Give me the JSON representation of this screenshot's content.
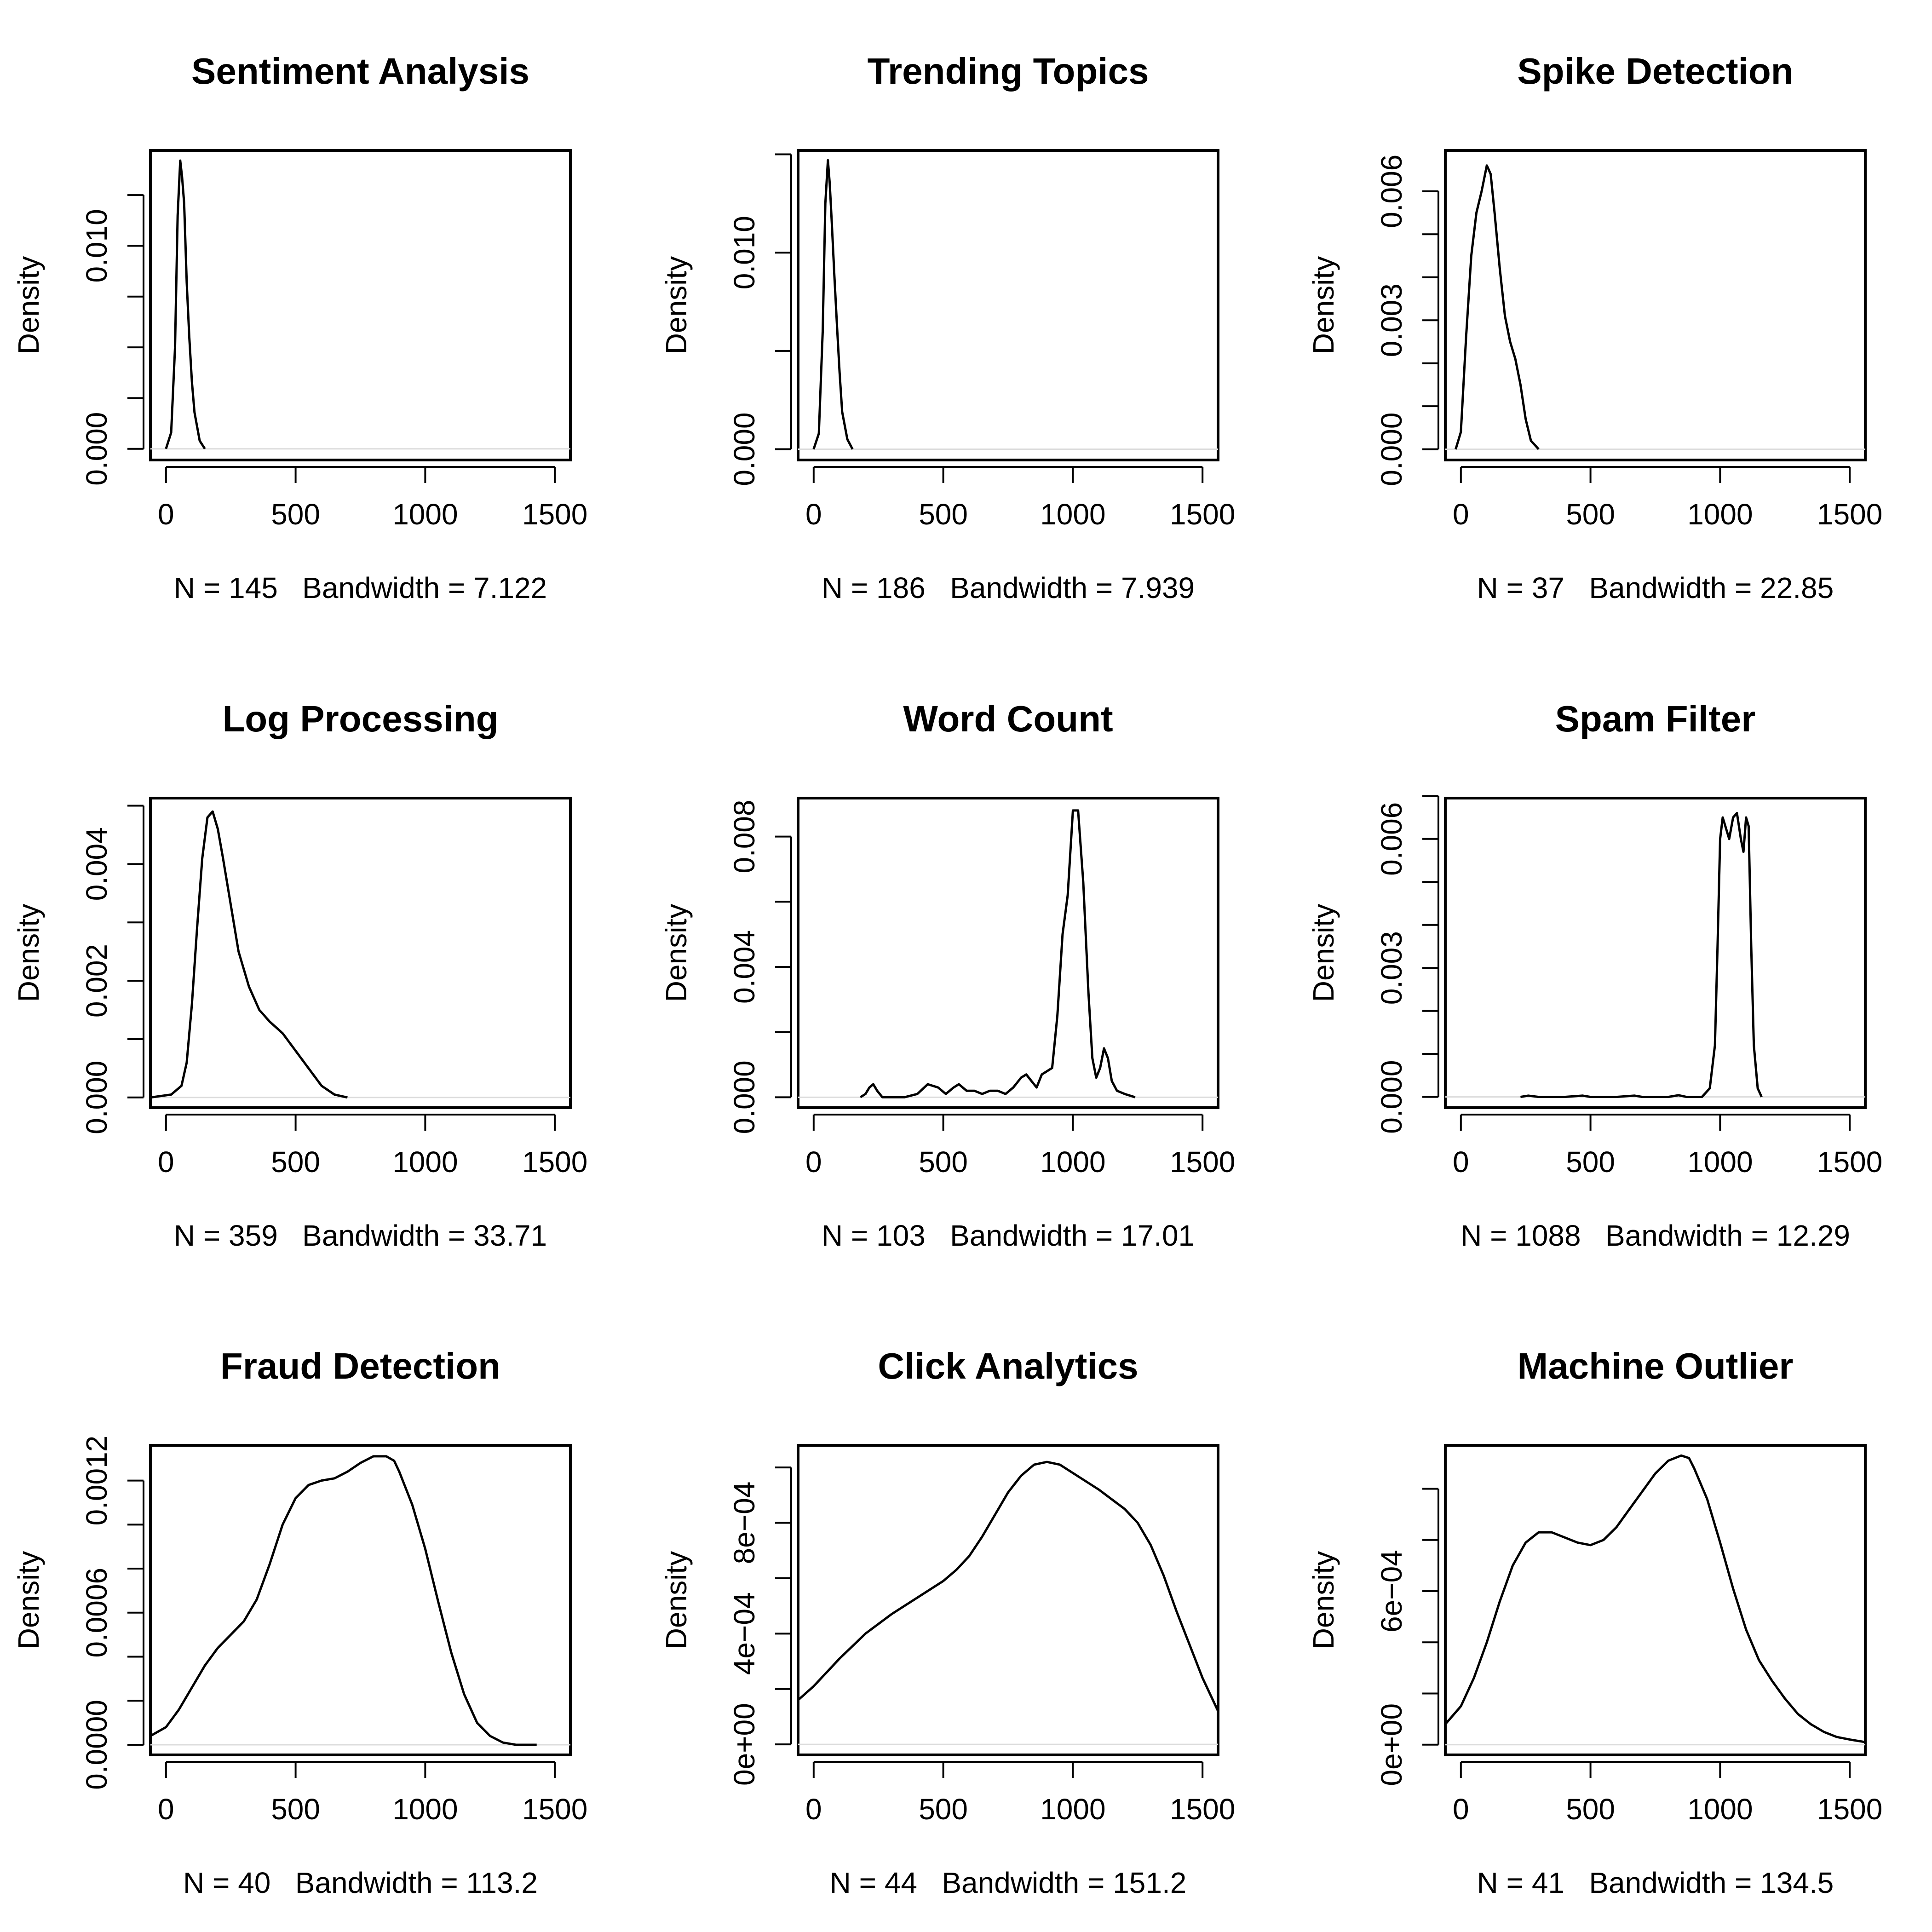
{
  "figure": {
    "ylabel": "Density"
  },
  "chart_data": [
    {
      "type": "line",
      "title": "Sentiment Analysis",
      "xlabel": "N = 145   Bandwidth = 7.122",
      "ylabel": "Density",
      "xlim": [
        -60,
        1560
      ],
      "ylim": [
        -0.00055,
        0.0147
      ],
      "x_ticks": [
        {
          "v": 0,
          "label": "0"
        },
        {
          "v": 500,
          "label": "500"
        },
        {
          "v": 1000,
          "label": "1000"
        },
        {
          "v": 1500,
          "label": "1500"
        }
      ],
      "y_ticks": [
        {
          "v": 0,
          "label": "0.000"
        },
        {
          "v": 0.0025,
          "label": ""
        },
        {
          "v": 0.005,
          "label": ""
        },
        {
          "v": 0.0075,
          "label": ""
        },
        {
          "v": 0.01,
          "label": "0.010"
        },
        {
          "v": 0.0125,
          "label": ""
        }
      ],
      "series": [
        {
          "x": [
            0,
            20,
            35,
            45,
            55,
            62,
            70,
            80,
            90,
            100,
            110,
            130,
            150
          ],
          "y": [
            0,
            0.0008,
            0.005,
            0.0115,
            0.0142,
            0.0134,
            0.0121,
            0.0082,
            0.0055,
            0.0033,
            0.0018,
            0.0004,
            0
          ]
        }
      ]
    },
    {
      "type": "line",
      "title": "Trending Topics",
      "xlabel": "N = 186   Bandwidth = 7.939",
      "ylabel": "Density",
      "xlim": [
        -60,
        1560
      ],
      "ylim": [
        -0.00055,
        0.0152
      ],
      "x_ticks": [
        {
          "v": 0,
          "label": "0"
        },
        {
          "v": 500,
          "label": "500"
        },
        {
          "v": 1000,
          "label": "1000"
        },
        {
          "v": 1500,
          "label": "1500"
        }
      ],
      "y_ticks": [
        {
          "v": 0,
          "label": "0.000"
        },
        {
          "v": 0.005,
          "label": ""
        },
        {
          "v": 0.01,
          "label": "0.010"
        },
        {
          "v": 0.015,
          "label": ""
        }
      ],
      "series": [
        {
          "x": [
            0,
            20,
            35,
            45,
            55,
            62,
            70,
            80,
            90,
            100,
            110,
            130,
            150
          ],
          "y": [
            0,
            0.0008,
            0.006,
            0.0125,
            0.0147,
            0.0135,
            0.0115,
            0.0088,
            0.0063,
            0.0039,
            0.0019,
            0.0005,
            0
          ]
        }
      ]
    },
    {
      "type": "line",
      "title": "Spike Detection",
      "xlabel": "N = 37   Bandwidth = 22.85",
      "ylabel": "Density",
      "xlim": [
        -60,
        1560
      ],
      "ylim": [
        -0.00025,
        0.00695
      ],
      "x_ticks": [
        {
          "v": 0,
          "label": "0"
        },
        {
          "v": 500,
          "label": "500"
        },
        {
          "v": 1000,
          "label": "1000"
        },
        {
          "v": 1500,
          "label": "1500"
        }
      ],
      "y_ticks": [
        {
          "v": 0,
          "label": "0.000"
        },
        {
          "v": 0.001,
          "label": ""
        },
        {
          "v": 0.002,
          "label": ""
        },
        {
          "v": 0.003,
          "label": "0.003"
        },
        {
          "v": 0.004,
          "label": ""
        },
        {
          "v": 0.005,
          "label": ""
        },
        {
          "v": 0.006,
          "label": "0.006"
        }
      ],
      "series": [
        {
          "x": [
            -20,
            0,
            20,
            40,
            60,
            80,
            100,
            115,
            130,
            150,
            170,
            190,
            210,
            230,
            250,
            270,
            300
          ],
          "y": [
            0,
            0.0004,
            0.0026,
            0.0045,
            0.0055,
            0.006,
            0.0066,
            0.0064,
            0.0055,
            0.0042,
            0.0031,
            0.0025,
            0.0021,
            0.0015,
            0.0007,
            0.0002,
            0
          ]
        }
      ]
    },
    {
      "type": "line",
      "title": "Log Processing",
      "xlabel": "N = 359   Bandwidth = 33.71",
      "ylabel": "Density",
      "xlim": [
        -60,
        1560
      ],
      "ylim": [
        -0.000175,
        0.00513
      ],
      "x_ticks": [
        {
          "v": 0,
          "label": "0"
        },
        {
          "v": 500,
          "label": "500"
        },
        {
          "v": 1000,
          "label": "1000"
        },
        {
          "v": 1500,
          "label": "1500"
        }
      ],
      "y_ticks": [
        {
          "v": 0,
          "label": "0.000"
        },
        {
          "v": 0.001,
          "label": ""
        },
        {
          "v": 0.002,
          "label": "0.002"
        },
        {
          "v": 0.003,
          "label": ""
        },
        {
          "v": 0.004,
          "label": "0.004"
        },
        {
          "v": 0.005,
          "label": ""
        }
      ],
      "series": [
        {
          "x": [
            -60,
            20,
            60,
            80,
            100,
            120,
            140,
            160,
            180,
            200,
            220,
            250,
            280,
            320,
            360,
            400,
            450,
            500,
            550,
            600,
            650,
            700
          ],
          "y": [
            0,
            5e-05,
            0.0002,
            0.0006,
            0.0016,
            0.0029,
            0.0041,
            0.0048,
            0.0049,
            0.0046,
            0.0041,
            0.0033,
            0.0025,
            0.0019,
            0.0015,
            0.0013,
            0.0011,
            0.0008,
            0.0005,
            0.0002,
            5e-05,
            0
          ]
        }
      ]
    },
    {
      "type": "line",
      "title": "Word Count",
      "xlabel": "N = 103   Bandwidth = 17.01",
      "ylabel": "Density",
      "xlim": [
        -60,
        1560
      ],
      "ylim": [
        -0.00032,
        0.00918
      ],
      "x_ticks": [
        {
          "v": 0,
          "label": "0"
        },
        {
          "v": 500,
          "label": "500"
        },
        {
          "v": 1000,
          "label": "1000"
        },
        {
          "v": 1500,
          "label": "1500"
        }
      ],
      "y_ticks": [
        {
          "v": 0,
          "label": "0.000"
        },
        {
          "v": 0.002,
          "label": ""
        },
        {
          "v": 0.004,
          "label": "0.004"
        },
        {
          "v": 0.006,
          "label": ""
        },
        {
          "v": 0.008,
          "label": "0.008"
        }
      ],
      "series": [
        {
          "x": [
            180,
            200,
            215,
            230,
            245,
            265,
            300,
            350,
            400,
            440,
            480,
            510,
            540,
            560,
            590,
            620,
            650,
            680,
            710,
            740,
            770,
            800,
            820,
            840,
            860,
            880,
            900,
            920,
            940,
            960,
            980,
            1000,
            1020,
            1040,
            1060,
            1075,
            1090,
            1105,
            1120,
            1135,
            1150,
            1170,
            1200,
            1240
          ],
          "y": [
            0,
            0.0001,
            0.0003,
            0.0004,
            0.0002,
            0,
            0,
            0,
            0.0001,
            0.0004,
            0.0003,
            0.0001,
            0.0003,
            0.0004,
            0.0002,
            0.0002,
            0.0001,
            0.0002,
            0.0002,
            0.0001,
            0.0003,
            0.0006,
            0.0007,
            0.0005,
            0.0003,
            0.0007,
            0.0008,
            0.0009,
            0.0025,
            0.005,
            0.0062,
            0.0088,
            0.0088,
            0.0066,
            0.0032,
            0.0012,
            0.0006,
            0.0009,
            0.0015,
            0.0012,
            0.0005,
            0.0002,
            0.0001,
            0
          ]
        }
      ]
    },
    {
      "type": "line",
      "title": "Spam Filter",
      "xlabel": "N = 1088   Bandwidth = 12.29",
      "ylabel": "Density",
      "xlim": [
        -60,
        1560
      ],
      "ylim": [
        -0.00025,
        0.00695
      ],
      "x_ticks": [
        {
          "v": 0,
          "label": "0"
        },
        {
          "v": 500,
          "label": "500"
        },
        {
          "v": 1000,
          "label": "1000"
        },
        {
          "v": 1500,
          "label": "1500"
        }
      ],
      "y_ticks": [
        {
          "v": 0,
          "label": "0.000"
        },
        {
          "v": 0.001,
          "label": ""
        },
        {
          "v": 0.002,
          "label": ""
        },
        {
          "v": 0.003,
          "label": "0.003"
        },
        {
          "v": 0.004,
          "label": ""
        },
        {
          "v": 0.005,
          "label": ""
        },
        {
          "v": 0.006,
          "label": "0.006"
        },
        {
          "v": 0.007,
          "label": ""
        }
      ],
      "series": [
        {
          "x": [
            230,
            260,
            300,
            400,
            470,
            500,
            600,
            670,
            700,
            800,
            840,
            870,
            930,
            960,
            980,
            990,
            1000,
            1010,
            1020,
            1035,
            1050,
            1065,
            1080,
            1090,
            1100,
            1110,
            1120,
            1130,
            1145,
            1160
          ],
          "y": [
            0,
            3e-05,
            0,
            0,
            3e-05,
            0,
            0,
            3e-05,
            0,
            0,
            4e-05,
            0,
            0,
            0.0002,
            0.0012,
            0.0035,
            0.006,
            0.0065,
            0.0063,
            0.006,
            0.0065,
            0.0066,
            0.006,
            0.0057,
            0.0065,
            0.0063,
            0.0035,
            0.0012,
            0.0002,
            0
          ]
        }
      ]
    },
    {
      "type": "line",
      "title": "Fraud Detection",
      "xlabel": "N = 40   Bandwidth = 113.2",
      "ylabel": "Density",
      "xlim": [
        -60,
        1560
      ],
      "ylim": [
        -4.6e-05,
        0.00136
      ],
      "x_ticks": [
        {
          "v": 0,
          "label": "0"
        },
        {
          "v": 500,
          "label": "500"
        },
        {
          "v": 1000,
          "label": "1000"
        },
        {
          "v": 1500,
          "label": "1500"
        }
      ],
      "y_ticks": [
        {
          "v": 0,
          "label": "0.0000"
        },
        {
          "v": 0.0002,
          "label": ""
        },
        {
          "v": 0.0004,
          "label": ""
        },
        {
          "v": 0.0006,
          "label": "0.0006"
        },
        {
          "v": 0.0008,
          "label": ""
        },
        {
          "v": 0.001,
          "label": ""
        },
        {
          "v": 0.0012,
          "label": "0.0012"
        }
      ],
      "series": [
        {
          "x": [
            -60,
            0,
            50,
            100,
            150,
            200,
            250,
            300,
            350,
            400,
            450,
            500,
            550,
            600,
            650,
            700,
            750,
            800,
            850,
            880,
            900,
            950,
            1000,
            1050,
            1100,
            1150,
            1200,
            1250,
            1300,
            1350,
            1430
          ],
          "y": [
            4e-05,
            8e-05,
            0.00016,
            0.00026,
            0.00036,
            0.00044,
            0.0005,
            0.00056,
            0.00066,
            0.00082,
            0.001,
            0.00112,
            0.00118,
            0.0012,
            0.00121,
            0.00124,
            0.00128,
            0.00131,
            0.00131,
            0.00129,
            0.00124,
            0.00109,
            0.00089,
            0.00065,
            0.00042,
            0.00023,
            0.0001,
            4e-05,
            1e-05,
            0,
            0
          ]
        }
      ]
    },
    {
      "type": "line",
      "title": "Click Analytics",
      "xlabel": "N = 44   Bandwidth = 151.2",
      "ylabel": "Density",
      "xlim": [
        -60,
        1560
      ],
      "ylim": [
        -3.8e-05,
        0.00108
      ],
      "x_ticks": [
        {
          "v": 0,
          "label": "0"
        },
        {
          "v": 500,
          "label": "500"
        },
        {
          "v": 1000,
          "label": "1000"
        },
        {
          "v": 1500,
          "label": "1500"
        }
      ],
      "y_ticks": [
        {
          "v": 0,
          "label": "0e+00"
        },
        {
          "v": 0.0002,
          "label": ""
        },
        {
          "v": 0.0004,
          "label": "4e−04"
        },
        {
          "v": 0.0006,
          "label": ""
        },
        {
          "v": 0.0008,
          "label": "8e−04"
        },
        {
          "v": 0.001,
          "label": ""
        }
      ],
      "series": [
        {
          "x": [
            -60,
            0,
            100,
            200,
            300,
            400,
            500,
            550,
            600,
            650,
            700,
            750,
            800,
            850,
            900,
            950,
            1000,
            1100,
            1200,
            1250,
            1300,
            1350,
            1400,
            1450,
            1500,
            1560
          ],
          "y": [
            0.00016,
            0.00021,
            0.00031,
            0.0004,
            0.00047,
            0.00053,
            0.00059,
            0.00063,
            0.00068,
            0.00075,
            0.00083,
            0.00091,
            0.00097,
            0.00101,
            0.00102,
            0.00101,
            0.00098,
            0.00092,
            0.00085,
            0.0008,
            0.00072,
            0.00061,
            0.00048,
            0.00036,
            0.00024,
            0.00012
          ]
        }
      ]
    },
    {
      "type": "line",
      "title": "Machine Outlier",
      "xlabel": "N = 41   Bandwidth = 134.5",
      "ylabel": "Density",
      "xlim": [
        -60,
        1560
      ],
      "ylim": [
        -4e-05,
        0.00117
      ],
      "x_ticks": [
        {
          "v": 0,
          "label": "0"
        },
        {
          "v": 500,
          "label": "500"
        },
        {
          "v": 1000,
          "label": "1000"
        },
        {
          "v": 1500,
          "label": "1500"
        }
      ],
      "y_ticks": [
        {
          "v": 0,
          "label": "0e+00"
        },
        {
          "v": 0.0002,
          "label": ""
        },
        {
          "v": 0.0004,
          "label": ""
        },
        {
          "v": 0.0006,
          "label": "6e−04"
        },
        {
          "v": 0.0008,
          "label": ""
        },
        {
          "v": 0.001,
          "label": ""
        }
      ],
      "series": [
        {
          "x": [
            -60,
            0,
            50,
            100,
            150,
            200,
            250,
            300,
            350,
            400,
            450,
            500,
            550,
            600,
            650,
            700,
            750,
            800,
            850,
            880,
            900,
            950,
            1000,
            1050,
            1100,
            1150,
            1200,
            1250,
            1300,
            1350,
            1400,
            1450,
            1500,
            1560
          ],
          "y": [
            8e-05,
            0.00015,
            0.00026,
            0.0004,
            0.00056,
            0.0007,
            0.00079,
            0.00083,
            0.00083,
            0.00081,
            0.00079,
            0.00078,
            0.0008,
            0.00085,
            0.00092,
            0.00099,
            0.00106,
            0.00111,
            0.00113,
            0.00112,
            0.00108,
            0.00096,
            0.00079,
            0.00061,
            0.00045,
            0.00033,
            0.00025,
            0.00018,
            0.00012,
            8e-05,
            5e-05,
            3e-05,
            2e-05,
            1e-05
          ]
        }
      ]
    }
  ]
}
